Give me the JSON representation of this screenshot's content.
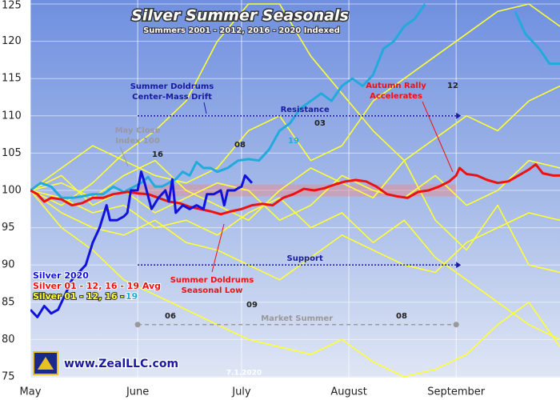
{
  "chart_data": {
    "type": "line",
    "title": "Silver Summer Seasonals",
    "subtitle": "Summers 2001 - 2012, 2016 - 2020 Indexed",
    "xlim": [
      0,
      153
    ],
    "xticks": [
      {
        "value": 0,
        "label": "May"
      },
      {
        "value": 31,
        "label": "June"
      },
      {
        "value": 61,
        "label": "July"
      },
      {
        "value": 92,
        "label": "August"
      },
      {
        "value": 123,
        "label": "September"
      }
    ],
    "ylim": [
      75,
      125
    ],
    "yticks": [
      75,
      80,
      85,
      90,
      95,
      100,
      105,
      110,
      115,
      120,
      125
    ],
    "grid": true,
    "series": [
      {
        "color": "#ffff33",
        "name": "Silver 01 - 12, 16 - ",
        "x": [
          0,
          9,
          18,
          27,
          36,
          45,
          54,
          63,
          72,
          81,
          90,
          99,
          108,
          117,
          126,
          135,
          144,
          153
        ],
        "values": [
          100,
          103,
          106,
          104,
          102,
          101,
          103,
          108,
          110,
          104,
          106,
          112,
          115,
          118,
          121,
          124,
          125,
          122
        ]
      },
      {
        "color": "#ffff33",
        "x": [
          0,
          9,
          18,
          27,
          36,
          45,
          54,
          63,
          72,
          81,
          90,
          99,
          108,
          117,
          126,
          135,
          144,
          153
        ],
        "values": [
          100,
          97,
          95,
          94,
          96,
          93,
          92,
          90,
          88,
          91,
          94,
          92,
          90,
          89,
          93,
          95,
          97,
          96
        ]
      },
      {
        "color": "#ffff33",
        "x": [
          0,
          9,
          18,
          27,
          36,
          45,
          54,
          63,
          72,
          81,
          90,
          99,
          108,
          117,
          126,
          135,
          144,
          153
        ],
        "values": [
          100,
          101,
          99,
          102,
          104,
          100,
          98,
          96,
          100,
          103,
          101,
          99,
          104,
          107,
          110,
          108,
          112,
          114
        ]
      },
      {
        "color": "#ffff33",
        "x": [
          0,
          9,
          18,
          27,
          36,
          45,
          54,
          63,
          72,
          81,
          90,
          99,
          108,
          117,
          126,
          135,
          144,
          153
        ],
        "values": [
          100,
          95,
          92,
          88,
          86,
          84,
          82,
          80,
          79,
          78,
          80,
          77,
          75,
          76,
          78,
          82,
          85,
          79
        ]
      },
      {
        "color": "#ffff33",
        "x": [
          0,
          9,
          18,
          27,
          36,
          45,
          54,
          63,
          72,
          81,
          90,
          99,
          108,
          117,
          126,
          135,
          144,
          153
        ],
        "values": [
          100,
          102,
          98,
          100,
          97,
          99,
          101,
          100,
          96,
          98,
          102,
          100,
          99,
          102,
          98,
          100,
          104,
          103
        ]
      },
      {
        "color": "#ffff33",
        "x": [
          0,
          9,
          18,
          27,
          36,
          45,
          54,
          63,
          72,
          81,
          90,
          99,
          108,
          117,
          126,
          135,
          144,
          153
        ],
        "values": [
          100,
          98,
          101,
          105,
          108,
          112,
          120,
          125,
          125,
          118,
          113,
          108,
          104,
          96,
          92,
          98,
          90,
          89
        ]
      },
      {
        "color": "#ffff33",
        "x": [
          0,
          9,
          18,
          27,
          36,
          45,
          54,
          63,
          72,
          81,
          90,
          99,
          108,
          117,
          126,
          135,
          144,
          153
        ],
        "values": [
          100,
          99,
          97,
          98,
          95,
          96,
          94,
          97,
          99,
          95,
          97,
          93,
          96,
          91,
          88,
          85,
          82,
          80
        ]
      },
      {
        "color": "#22aadd",
        "name": "19",
        "x": [
          0,
          3,
          6,
          9,
          12,
          15,
          18,
          21,
          24,
          27,
          30,
          32,
          34,
          36,
          38,
          40,
          42,
          44,
          46,
          48,
          50,
          52,
          54,
          57,
          60,
          63,
          66,
          69,
          72,
          75,
          78,
          81,
          84,
          87,
          90,
          93,
          96,
          99,
          102,
          105,
          108,
          111,
          114,
          130,
          140,
          143,
          147,
          150,
          153
        ],
        "values": [
          100,
          101,
          100.5,
          99,
          99,
          99.2,
          99.5,
          99.5,
          100.5,
          99.8,
          100.5,
          101,
          101.8,
          100.5,
          100.5,
          101,
          101.5,
          102.5,
          102,
          103.8,
          103,
          103,
          102.5,
          103,
          104,
          104.2,
          104,
          105.5,
          108,
          109,
          111,
          112,
          113,
          112,
          114,
          115,
          114,
          115.5,
          119,
          120,
          122,
          123,
          125,
          null,
          124,
          121,
          119,
          117,
          117
        ]
      },
      {
        "color": "#ee1111",
        "name": "Silver 01 - 12, 16 - 19 Avg",
        "x": [
          0,
          2,
          4,
          6,
          9,
          12,
          15,
          18,
          21,
          24,
          28,
          31,
          34,
          37,
          40,
          43,
          46,
          49,
          52,
          55,
          58,
          61,
          64,
          67,
          70,
          73,
          76,
          79,
          82,
          85,
          88,
          91,
          94,
          97,
          100,
          103,
          106,
          109,
          112,
          115,
          118,
          121,
          123,
          124,
          126,
          129,
          132,
          135,
          138,
          141,
          144,
          146,
          148,
          151,
          153
        ],
        "values": [
          100,
          99.5,
          98.5,
          99,
          98.8,
          98,
          98.3,
          99,
          99,
          99.5,
          99.8,
          99.6,
          99.5,
          99,
          98.5,
          98.3,
          97.8,
          97.5,
          97.2,
          96.8,
          97.2,
          97.5,
          98,
          98.2,
          98,
          99,
          99.5,
          100.2,
          100,
          100.3,
          100.8,
          101.2,
          101.4,
          101.2,
          100.5,
          99.5,
          99.2,
          99,
          99.8,
          100,
          100.5,
          101.2,
          102,
          103,
          102.2,
          102,
          101.4,
          101,
          101.2,
          102,
          102.8,
          103.5,
          102.3,
          102,
          102
        ]
      },
      {
        "color": "#1111dd",
        "name": "Silver 2020",
        "x": [
          0,
          2,
          4,
          6,
          8,
          10,
          12,
          14,
          16,
          18,
          20,
          22,
          23,
          25,
          27,
          28,
          29,
          31,
          32,
          33,
          35,
          37,
          39,
          40,
          41,
          42,
          44,
          46,
          48,
          50,
          51,
          53,
          55,
          56,
          57,
          59,
          60,
          61,
          62,
          63,
          64
        ],
        "values": [
          84,
          83,
          84.5,
          83.5,
          84,
          86,
          88,
          89,
          90,
          93,
          95,
          98,
          96,
          96,
          96.5,
          97,
          100,
          100,
          102.5,
          101,
          97.5,
          99,
          100,
          98.5,
          101.5,
          97,
          98,
          97.5,
          98,
          97.5,
          99.5,
          99.5,
          100,
          98,
          100,
          100,
          100.3,
          100.5,
          102,
          101.5,
          101
        ]
      }
    ],
    "reference_lines": [
      {
        "label": "Resistance",
        "value": 110
      },
      {
        "label": "Support",
        "value": 90
      },
      {
        "label": "Market Summer",
        "value": 82,
        "xrange": [
          31,
          123
        ]
      }
    ],
    "annotations": [
      "Summer Doldrums",
      "Center-Mass Drift",
      "May Close",
      "Index 100",
      "Autumn Rally",
      "Accelerates",
      "Summer Doldrums",
      "Seasonal Low"
    ],
    "year_labels": [
      "16",
      "08",
      "03",
      "19",
      "12",
      "06",
      "09",
      "08"
    ],
    "watermark": "www.ZealLLC.com",
    "date_stamp": "7.1.2020"
  }
}
